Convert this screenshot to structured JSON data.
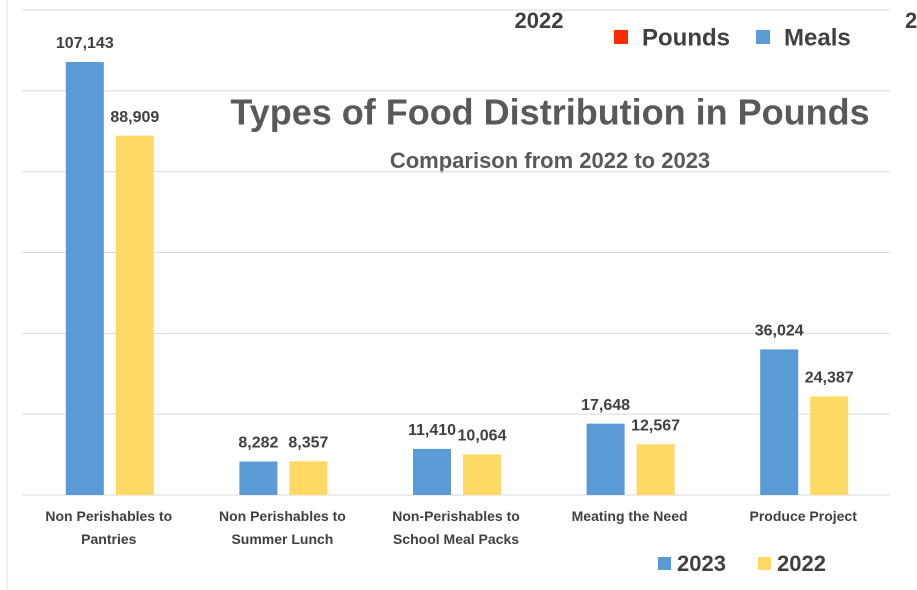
{
  "chart_data": {
    "type": "bar",
    "title": "Types of Food Distribution in Pounds",
    "subtitle": "Comparison from 2022 to 2023",
    "categories": [
      "Non Perishables to Pantries",
      "Non Perishables to Summer Lunch",
      "Non-Perishables to School Meal Packs",
      "Meating the Need",
      "Produce Project"
    ],
    "series": [
      {
        "name": "2023",
        "color": "#5b9bd5",
        "values": [
          107143,
          8282,
          11410,
          17648,
          36024
        ],
        "value_labels": [
          "107,143",
          "8,282",
          "11,410",
          "17,648",
          "36,024"
        ]
      },
      {
        "name": "2022",
        "color": "#ffd966",
        "values": [
          88909,
          8357,
          10064,
          12567,
          24387
        ],
        "value_labels": [
          "88,909",
          "8,357",
          "10,064",
          "12,567",
          "24,387"
        ]
      }
    ],
    "ylim": [
      0,
      120000
    ],
    "yticks": [
      0,
      20000,
      40000,
      60000,
      80000,
      100000,
      120000
    ],
    "grid": true,
    "legend": "bottom-right",
    "overlay_legend": {
      "title": "2022",
      "items": [
        {
          "name": "Pounds",
          "color": "#ff2a00"
        },
        {
          "name": "Meals",
          "color": "#5b9bd5"
        }
      ],
      "fragment": "2"
    }
  }
}
